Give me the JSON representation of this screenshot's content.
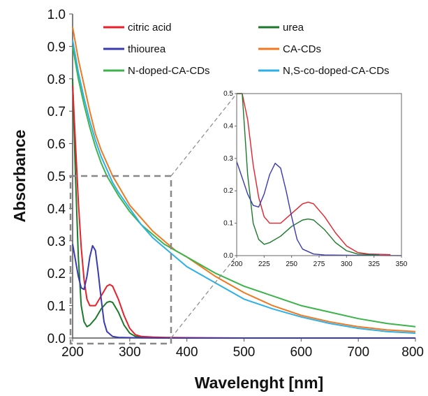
{
  "chart_data": [
    {
      "type": "line",
      "xlabel": "Wavelenght [nm]",
      "ylabel": "Absorbance",
      "xlim": [
        200,
        800
      ],
      "ylim": [
        0,
        1.0
      ],
      "xticks": [
        200,
        300,
        400,
        500,
        600,
        700,
        800
      ],
      "yticks": [
        0.0,
        0.1,
        0.2,
        0.3,
        0.4,
        0.5,
        0.6,
        0.7,
        0.8,
        0.9,
        1.0
      ],
      "xtick_labels": [
        "200",
        "300",
        "400",
        "500",
        "600",
        "700",
        "800"
      ],
      "ytick_labels": [
        "0.0",
        "0.1",
        "0.2",
        "0.3",
        "0.4",
        "0.5",
        "0.6",
        "0.7",
        "0.8",
        "0.9",
        "1.0"
      ],
      "grid": false,
      "legend_position": "top",
      "series": [
        {
          "name": "citric acid",
          "color": "#e8202a",
          "x": [
            200,
            205,
            210,
            215,
            220,
            225,
            230,
            240,
            250,
            260,
            265,
            270,
            280,
            290,
            300,
            310,
            320,
            340,
            360,
            400,
            500,
            600,
            800
          ],
          "y": [
            0.78,
            0.6,
            0.42,
            0.28,
            0.18,
            0.12,
            0.1,
            0.1,
            0.13,
            0.16,
            0.165,
            0.16,
            0.12,
            0.07,
            0.03,
            0.01,
            0.005,
            0.003,
            0.002,
            0.001,
            0.0,
            0.0,
            0.0
          ]
        },
        {
          "name": "urea",
          "color": "#1a7a2a",
          "x": [
            200,
            205,
            210,
            215,
            220,
            225,
            230,
            240,
            250,
            260,
            265,
            270,
            280,
            290,
            300,
            310,
            330,
            360,
            400,
            500,
            600,
            800
          ],
          "y": [
            0.8,
            0.5,
            0.25,
            0.1,
            0.05,
            0.035,
            0.04,
            0.06,
            0.09,
            0.11,
            0.113,
            0.11,
            0.08,
            0.04,
            0.015,
            0.005,
            0.002,
            0.001,
            0.0,
            0.0,
            0.0,
            0.0
          ]
        },
        {
          "name": "thiourea",
          "color": "#3a3ab0",
          "x": [
            200,
            205,
            210,
            215,
            220,
            225,
            230,
            235,
            240,
            245,
            250,
            255,
            260,
            270,
            280,
            300,
            350,
            400,
            500,
            600,
            800
          ],
          "y": [
            0.29,
            0.24,
            0.19,
            0.155,
            0.15,
            0.19,
            0.25,
            0.285,
            0.27,
            0.2,
            0.12,
            0.05,
            0.02,
            0.005,
            0.002,
            0.001,
            0.0,
            0.0,
            0.0,
            0.0,
            0.0
          ]
        },
        {
          "name": "CA-CDs",
          "color": "#f07820",
          "x": [
            200,
            210,
            220,
            230,
            240,
            250,
            260,
            270,
            280,
            300,
            320,
            340,
            360,
            380,
            400,
            450,
            500,
            550,
            600,
            650,
            700,
            750,
            800
          ],
          "y": [
            0.96,
            0.86,
            0.78,
            0.7,
            0.63,
            0.58,
            0.54,
            0.5,
            0.47,
            0.41,
            0.37,
            0.33,
            0.3,
            0.27,
            0.25,
            0.19,
            0.14,
            0.1,
            0.07,
            0.05,
            0.035,
            0.025,
            0.02
          ]
        },
        {
          "name": "N-doped-CA-CDs",
          "color": "#3cb44b",
          "x": [
            200,
            210,
            220,
            230,
            240,
            250,
            260,
            270,
            280,
            300,
            320,
            340,
            360,
            380,
            400,
            450,
            500,
            550,
            600,
            650,
            700,
            750,
            800
          ],
          "y": [
            0.9,
            0.8,
            0.72,
            0.65,
            0.59,
            0.54,
            0.5,
            0.47,
            0.44,
            0.39,
            0.35,
            0.32,
            0.29,
            0.27,
            0.25,
            0.2,
            0.16,
            0.13,
            0.1,
            0.08,
            0.06,
            0.045,
            0.035
          ]
        },
        {
          "name": "N,S-co-doped-CA-CDs",
          "color": "#2cb0e8",
          "x": [
            200,
            210,
            220,
            230,
            240,
            250,
            260,
            270,
            280,
            300,
            320,
            340,
            360,
            380,
            400,
            450,
            500,
            550,
            600,
            650,
            700,
            750,
            800
          ],
          "y": [
            0.92,
            0.82,
            0.74,
            0.67,
            0.61,
            0.56,
            0.52,
            0.48,
            0.45,
            0.4,
            0.35,
            0.31,
            0.28,
            0.25,
            0.22,
            0.17,
            0.12,
            0.09,
            0.065,
            0.045,
            0.03,
            0.02,
            0.015
          ]
        }
      ]
    },
    {
      "type": "line",
      "xlim": [
        200,
        350
      ],
      "ylim": [
        0,
        0.5
      ],
      "xticks": [
        200,
        225,
        250,
        275,
        300,
        325,
        350
      ],
      "yticks": [
        0.0,
        0.1,
        0.2,
        0.3,
        0.4,
        0.5
      ],
      "xtick_labels": [
        "200",
        "225",
        "250",
        "275",
        "300",
        "325",
        "350"
      ],
      "ytick_labels": [
        "0.0",
        "0.1",
        "0.2",
        "0.3",
        "0.4",
        "0.5"
      ],
      "grid": false,
      "series_from_main": [
        "citric acid",
        "urea",
        "thiourea"
      ]
    }
  ]
}
